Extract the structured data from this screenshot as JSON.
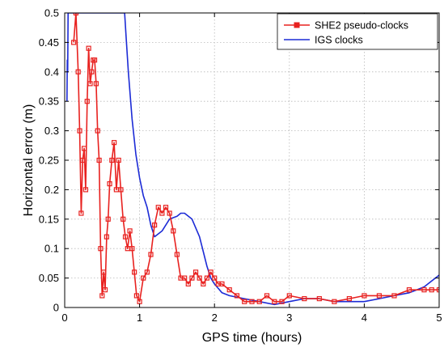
{
  "chart_data": {
    "type": "line",
    "title": "",
    "xlabel": "GPS time (hours)",
    "ylabel": "Horizontal error (m)",
    "xlim": [
      0,
      5
    ],
    "ylim": [
      0,
      0.5
    ],
    "xticks": [
      "0",
      "1",
      "2",
      "3",
      "4",
      "5"
    ],
    "yticks": [
      "0",
      "0.05",
      "0.1",
      "0.15",
      "0.2",
      "0.25",
      "0.3",
      "0.35",
      "0.4",
      "0.45",
      "0.5"
    ],
    "grid": true,
    "legend_position": "top-right",
    "series": [
      {
        "name": "SHE2 pseudo-clocks",
        "color": "#e8211f",
        "marker": "square",
        "x": [
          0.12,
          0.15,
          0.18,
          0.2,
          0.22,
          0.24,
          0.26,
          0.28,
          0.3,
          0.32,
          0.34,
          0.36,
          0.38,
          0.4,
          0.42,
          0.44,
          0.46,
          0.48,
          0.5,
          0.52,
          0.54,
          0.56,
          0.58,
          0.6,
          0.63,
          0.66,
          0.69,
          0.72,
          0.75,
          0.78,
          0.81,
          0.84,
          0.87,
          0.9,
          0.93,
          0.96,
          1.0,
          1.05,
          1.1,
          1.15,
          1.2,
          1.25,
          1.3,
          1.35,
          1.4,
          1.45,
          1.5,
          1.55,
          1.6,
          1.65,
          1.7,
          1.75,
          1.8,
          1.85,
          1.9,
          1.95,
          2.0,
          2.05,
          2.1,
          2.2,
          2.3,
          2.4,
          2.5,
          2.6,
          2.7,
          2.8,
          2.9,
          3.0,
          3.2,
          3.4,
          3.6,
          3.8,
          4.0,
          4.2,
          4.4,
          4.6,
          4.8,
          4.9,
          5.0
        ],
        "values": [
          0.45,
          0.5,
          0.4,
          0.3,
          0.16,
          0.25,
          0.27,
          0.2,
          0.35,
          0.44,
          0.38,
          0.4,
          0.42,
          0.42,
          0.38,
          0.3,
          0.25,
          0.1,
          0.02,
          0.06,
          0.03,
          0.12,
          0.15,
          0.21,
          0.25,
          0.28,
          0.2,
          0.25,
          0.2,
          0.15,
          0.12,
          0.1,
          0.13,
          0.1,
          0.06,
          0.02,
          0.01,
          0.05,
          0.06,
          0.09,
          0.14,
          0.17,
          0.16,
          0.17,
          0.16,
          0.13,
          0.09,
          0.05,
          0.05,
          0.04,
          0.05,
          0.06,
          0.05,
          0.04,
          0.05,
          0.06,
          0.05,
          0.04,
          0.04,
          0.03,
          0.02,
          0.01,
          0.01,
          0.01,
          0.02,
          0.01,
          0.01,
          0.02,
          0.015,
          0.015,
          0.01,
          0.015,
          0.02,
          0.02,
          0.02,
          0.03,
          0.03,
          0.03,
          0.03
        ]
      },
      {
        "name": "IGS clocks",
        "color": "#1c2bd6",
        "marker": "none",
        "x": [
          0.03,
          0.035,
          0.04,
          0.045,
          0.05,
          0.06,
          0.07,
          0.1,
          0.2,
          0.4,
          0.6,
          0.7,
          0.75,
          0.8,
          0.82,
          0.85,
          0.9,
          0.95,
          1.0,
          1.05,
          1.1,
          1.15,
          1.2,
          1.3,
          1.4,
          1.5,
          1.55,
          1.6,
          1.7,
          1.8,
          1.9,
          1.95,
          2.0,
          2.1,
          2.2,
          2.4,
          2.6,
          2.8,
          3.0,
          3.2,
          3.4,
          3.6,
          3.8,
          4.0,
          4.2,
          4.4,
          4.6,
          4.7,
          4.8,
          4.9,
          4.95,
          5.0
        ],
        "values": [
          0.35,
          0.42,
          0.4,
          0.5,
          0.5,
          0.5,
          0.5,
          0.5,
          0.5,
          0.5,
          0.5,
          0.5,
          0.5,
          0.5,
          0.46,
          0.4,
          0.32,
          0.26,
          0.22,
          0.19,
          0.17,
          0.14,
          0.12,
          0.13,
          0.15,
          0.155,
          0.16,
          0.16,
          0.15,
          0.12,
          0.07,
          0.05,
          0.04,
          0.025,
          0.02,
          0.015,
          0.01,
          0.005,
          0.01,
          0.015,
          0.015,
          0.01,
          0.01,
          0.01,
          0.015,
          0.02,
          0.025,
          0.03,
          0.035,
          0.045,
          0.05,
          0.055
        ]
      }
    ]
  }
}
